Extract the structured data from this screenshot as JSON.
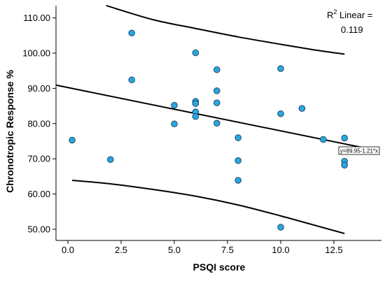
{
  "chart_data": {
    "type": "scatter",
    "xlabel": "PSQI score",
    "ylabel": "Chronotropic Response %",
    "xlim": [
      -0.8,
      14.5
    ],
    "ylim": [
      46,
      114
    ],
    "x_ticks": [
      "0.0",
      "2.5",
      "5.0",
      "7.5",
      "10.0",
      "12.5"
    ],
    "y_ticks": [
      "50.00",
      "60.00",
      "70.00",
      "80.00",
      "90.00",
      "100.00",
      "110.00"
    ],
    "grid": false,
    "point_color": "#29a8e0",
    "points": [
      {
        "x": 0.2,
        "y": 75.3
      },
      {
        "x": 2.0,
        "y": 69.8
      },
      {
        "x": 3.0,
        "y": 105.7
      },
      {
        "x": 3.0,
        "y": 92.4
      },
      {
        "x": 5.0,
        "y": 85.2
      },
      {
        "x": 5.0,
        "y": 79.9
      },
      {
        "x": 6.0,
        "y": 100.1
      },
      {
        "x": 6.0,
        "y": 86.3
      },
      {
        "x": 6.0,
        "y": 85.7
      },
      {
        "x": 6.0,
        "y": 83.3
      },
      {
        "x": 6.0,
        "y": 82.0
      },
      {
        "x": 7.0,
        "y": 95.3
      },
      {
        "x": 7.0,
        "y": 89.3
      },
      {
        "x": 7.0,
        "y": 85.9
      },
      {
        "x": 7.0,
        "y": 80.1
      },
      {
        "x": 8.0,
        "y": 76.0
      },
      {
        "x": 8.0,
        "y": 69.5
      },
      {
        "x": 8.0,
        "y": 63.9
      },
      {
        "x": 10.0,
        "y": 95.6
      },
      {
        "x": 10.0,
        "y": 82.8
      },
      {
        "x": 10.0,
        "y": 50.6
      },
      {
        "x": 11.0,
        "y": 84.3
      },
      {
        "x": 12.0,
        "y": 75.5
      },
      {
        "x": 13.0,
        "y": 75.9
      },
      {
        "x": 13.0,
        "y": 69.3
      },
      {
        "x": 13.0,
        "y": 68.2
      }
    ],
    "fit_line": {
      "intercept": 89.95,
      "slope": -1.21,
      "x_range": [
        -0.8,
        14.0
      ]
    },
    "upper_ci": [
      {
        "x": 1.8,
        "y": 113.5
      },
      {
        "x": 4.0,
        "y": 109.5
      },
      {
        "x": 6.0,
        "y": 107.0
      },
      {
        "x": 8.0,
        "y": 104.6
      },
      {
        "x": 10.0,
        "y": 102.5
      },
      {
        "x": 11.5,
        "y": 101.0
      },
      {
        "x": 13.0,
        "y": 99.7
      }
    ],
    "lower_ci": [
      {
        "x": 0.2,
        "y": 63.9
      },
      {
        "x": 2.0,
        "y": 62.9
      },
      {
        "x": 4.0,
        "y": 61.3
      },
      {
        "x": 6.0,
        "y": 59.4
      },
      {
        "x": 8.0,
        "y": 56.9
      },
      {
        "x": 10.0,
        "y": 53.8
      },
      {
        "x": 11.5,
        "y": 51.3
      },
      {
        "x": 13.0,
        "y": 48.8
      }
    ],
    "r2_label": {
      "r": "R",
      "sup": "2",
      "rest": " Linear =",
      "value": "0.119"
    },
    "equation_label": "y=89.95-1.21*x"
  }
}
